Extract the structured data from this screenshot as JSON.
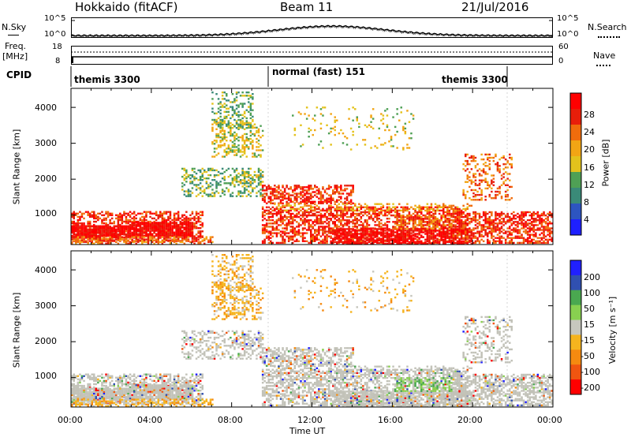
{
  "header": {
    "station": "Hokkaido (fitACF)",
    "beam": "Beam 11",
    "date": "21/Jul/2016"
  },
  "noise_panel": {
    "left_label": "N.Sky",
    "right_label": "N.Search",
    "left_ticks": [
      "10^5",
      "10^0"
    ],
    "right_ticks": [
      "10^5",
      "10^0"
    ]
  },
  "freq_panel": {
    "left_label_1": "Freq.",
    "left_label_2": "[MHz]",
    "left_ticks": [
      "18",
      "8"
    ],
    "right_label": "Nave",
    "right_ticks": [
      "60",
      "0"
    ]
  },
  "cpid": {
    "label": "CPID",
    "segments": [
      {
        "text": "themis 3300"
      },
      {
        "text": "normal (fast) 151"
      },
      {
        "text": "themis 3300"
      }
    ]
  },
  "colors": {
    "power_scale": [
      "#1e20ff",
      "#2d55c0",
      "#3a8a78",
      "#4fa055",
      "#e3c21c",
      "#f2a514",
      "#f06c0c",
      "#e81e0a",
      "#ff0000"
    ],
    "velocity_scale": [
      "#ff0000",
      "#f05510",
      "#f58a10",
      "#f5b41e",
      "#c7c7be",
      "#88d050",
      "#4aa850",
      "#3050b0",
      "#2020ff"
    ],
    "ground_scatter": "#c2c2b8"
  },
  "chart_data": [
    {
      "type": "heatmap",
      "name_hint": "power",
      "ylabel": "Slant Range [km]",
      "yticks": [
        "1000",
        "2000",
        "3000",
        "4000"
      ],
      "ylim": [
        180,
        4530
      ],
      "colorbar_label": "Power [dB]",
      "colorbar_ticks": [
        "28",
        "24",
        "20",
        "16",
        "12",
        "8",
        "4"
      ],
      "colorbar_range": [
        0,
        32
      ]
    },
    {
      "type": "heatmap",
      "name_hint": "velocity",
      "ylabel": "Slant Range [km]",
      "yticks": [
        "1000",
        "2000",
        "3000",
        "4000"
      ],
      "ylim": [
        180,
        4530
      ],
      "colorbar_label": "Velocity [m s⁻¹]",
      "colorbar_ticks": [
        "200",
        "100",
        "50",
        "15",
        "-15",
        "-50",
        "-100",
        "-200"
      ]
    }
  ],
  "xaxis": {
    "label": "Time UT",
    "ticks": [
      "00:00",
      "04:00",
      "08:00",
      "12:00",
      "16:00",
      "20:00",
      "00:00"
    ]
  }
}
